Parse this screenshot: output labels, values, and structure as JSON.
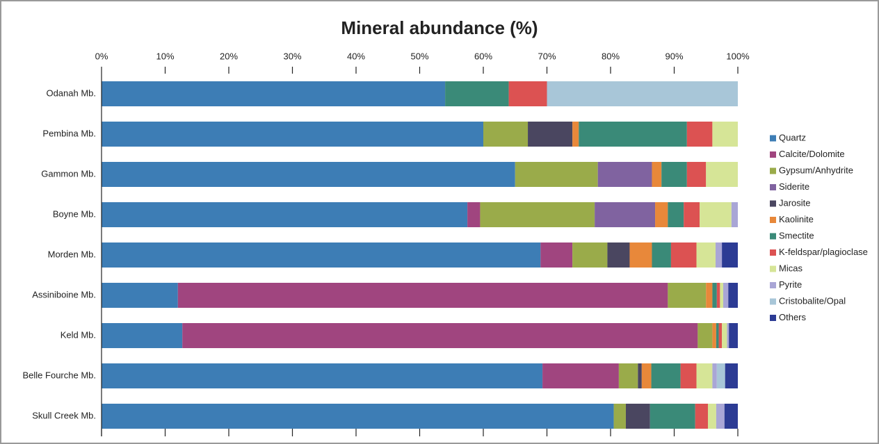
{
  "chart_data": {
    "type": "stacked-barh",
    "title": "Mineral abundance (%)",
    "categories": [
      "Odanah Mb.",
      "Pembina Mb.",
      "Gammon Mb.",
      "Boyne Mb.",
      "Morden Mb.",
      "Assiniboine Mb.",
      "Keld Mb.",
      "Belle Fourche Mb.",
      "Skull Creek Mb."
    ],
    "series": [
      {
        "name": "Quartz",
        "color": "#3d7db5",
        "values": [
          54,
          60,
          65,
          57.5,
          69,
          12,
          12.7,
          69.3,
          80.5
        ]
      },
      {
        "name": "Calcite/Dolomite",
        "color": "#a0457f",
        "values": [
          0,
          0,
          0,
          2,
          5,
          77,
          81,
          12,
          0
        ]
      },
      {
        "name": "Gypsum/Anhydrite",
        "color": "#9aab4a",
        "values": [
          0,
          7,
          13,
          18,
          5.5,
          6,
          2.3,
          3,
          1.9
        ]
      },
      {
        "name": "Siderite",
        "color": "#8063a0",
        "values": [
          0,
          0,
          8.5,
          9.5,
          0,
          0,
          0,
          0,
          0
        ]
      },
      {
        "name": "Jarosite",
        "color": "#4a4660",
        "values": [
          0,
          7,
          0,
          0,
          3.5,
          0,
          0,
          0.6,
          3.8
        ]
      },
      {
        "name": "Kaolinite",
        "color": "#e8883a",
        "values": [
          0,
          1,
          1.5,
          2,
          3.5,
          1,
          0.6,
          1.5,
          0
        ]
      },
      {
        "name": "Smectite",
        "color": "#3a8a78",
        "values": [
          10,
          17,
          4,
          2.5,
          3,
          0.7,
          0.4,
          4.6,
          7.1
        ]
      },
      {
        "name": "K-feldspar/plagioclase",
        "color": "#dc5252",
        "values": [
          6,
          4,
          3,
          2.5,
          4,
          0.5,
          0.5,
          2.5,
          2
        ]
      },
      {
        "name": "Micas",
        "color": "#d6e597",
        "values": [
          0,
          4,
          5,
          5,
          3,
          0.5,
          0.8,
          2.5,
          1.3
        ]
      },
      {
        "name": "Pyrite",
        "color": "#a9a6d6",
        "values": [
          0,
          0,
          0,
          1,
          1,
          0.8,
          0.3,
          0.7,
          1.3
        ]
      },
      {
        "name": "Cristobalite/Opal",
        "color": "#a8c6d8",
        "values": [
          30,
          0,
          0,
          0,
          0,
          0,
          0,
          1.3,
          0
        ]
      },
      {
        "name": "Others",
        "color": "#2c3b94",
        "values": [
          0,
          0,
          0,
          0,
          2.5,
          1.5,
          1.4,
          2,
          2.1
        ]
      }
    ],
    "xlim": [
      0,
      100
    ],
    "xticks": [
      {
        "value": 0,
        "label": "0%"
      },
      {
        "value": 10,
        "label": "10%"
      },
      {
        "value": 20,
        "label": "20%"
      },
      {
        "value": 30,
        "label": "30%"
      },
      {
        "value": 40,
        "label": "40%"
      },
      {
        "value": 50,
        "label": "50%"
      },
      {
        "value": 60,
        "label": "60%"
      },
      {
        "value": 70,
        "label": "70%"
      },
      {
        "value": 80,
        "label": "80%"
      },
      {
        "value": 90,
        "label": "90%"
      },
      {
        "value": 100,
        "label": "100%"
      }
    ],
    "legend": "right"
  }
}
